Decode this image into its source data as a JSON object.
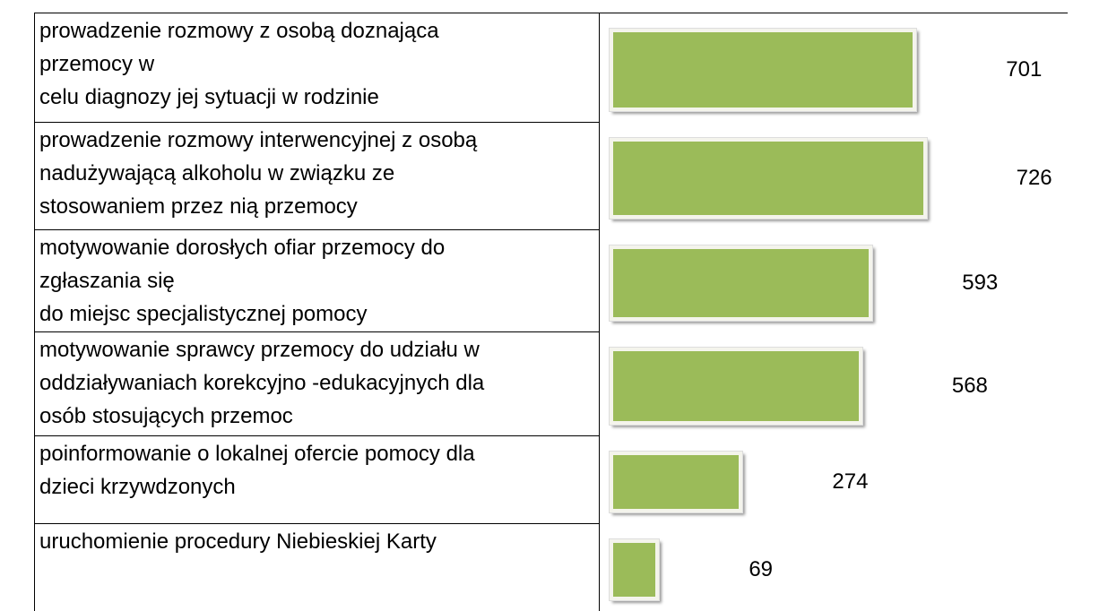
{
  "chart_data": {
    "type": "bar",
    "categories": [
      "prowadzenie rozmowy z osobą doznająca\nprzemocy w\ncelu diagnozy jej sytuacji w rodzinie",
      "prowadzenie rozmowy interwencyjnej z osobą\nnadużywającą alkoholu w związku ze\nstosowaniem przez nią przemocy",
      "motywowanie dorosłych ofiar przemocy do\nzgłaszania się\ndo miejsc specjalistycznej pomocy",
      "motywowanie  sprawcy przemocy do udziału w\noddziaływaniach korekcyjno -edukacyjnych  dla\nosób stosujących przemoc",
      "poinformowanie o lokalnej ofercie pomocy dla\ndzieci krzywdzonych",
      "uruchomienie procedury Niebieskiej Karty"
    ],
    "values": [
      701,
      726,
      593,
      568,
      274,
      69
    ],
    "color": "#9bbb59"
  }
}
